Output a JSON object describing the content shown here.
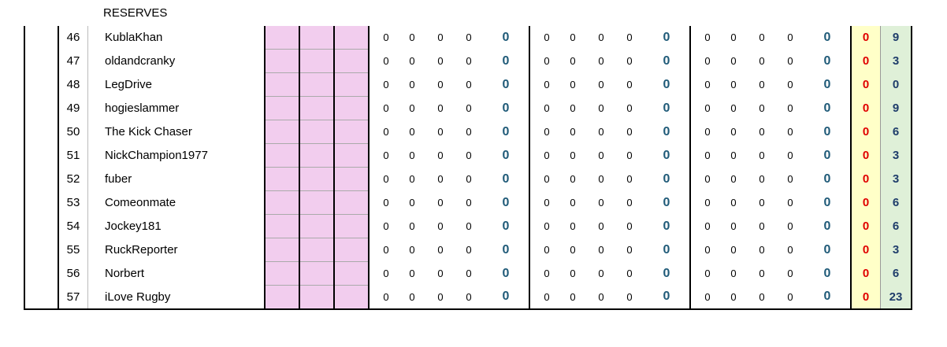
{
  "header": {
    "title": "RESERVES"
  },
  "table": {
    "rows": [
      {
        "rank": 46,
        "name": "KublaKhan",
        "groups": [
          [
            0,
            0,
            0,
            0,
            0
          ],
          [
            0,
            0,
            0,
            0,
            0
          ],
          [
            0,
            0,
            0,
            0,
            0
          ]
        ],
        "round": 0,
        "total": 9
      },
      {
        "rank": 47,
        "name": "oldandcranky",
        "groups": [
          [
            0,
            0,
            0,
            0,
            0
          ],
          [
            0,
            0,
            0,
            0,
            0
          ],
          [
            0,
            0,
            0,
            0,
            0
          ]
        ],
        "round": 0,
        "total": 3
      },
      {
        "rank": 48,
        "name": "LegDrive",
        "groups": [
          [
            0,
            0,
            0,
            0,
            0
          ],
          [
            0,
            0,
            0,
            0,
            0
          ],
          [
            0,
            0,
            0,
            0,
            0
          ]
        ],
        "round": 0,
        "total": 0
      },
      {
        "rank": 49,
        "name": "hogieslammer",
        "groups": [
          [
            0,
            0,
            0,
            0,
            0
          ],
          [
            0,
            0,
            0,
            0,
            0
          ],
          [
            0,
            0,
            0,
            0,
            0
          ]
        ],
        "round": 0,
        "total": 9
      },
      {
        "rank": 50,
        "name": "The Kick Chaser",
        "groups": [
          [
            0,
            0,
            0,
            0,
            0
          ],
          [
            0,
            0,
            0,
            0,
            0
          ],
          [
            0,
            0,
            0,
            0,
            0
          ]
        ],
        "round": 0,
        "total": 6
      },
      {
        "rank": 51,
        "name": "NickChampion1977",
        "groups": [
          [
            0,
            0,
            0,
            0,
            0
          ],
          [
            0,
            0,
            0,
            0,
            0
          ],
          [
            0,
            0,
            0,
            0,
            0
          ]
        ],
        "round": 0,
        "total": 3
      },
      {
        "rank": 52,
        "name": "fuber",
        "groups": [
          [
            0,
            0,
            0,
            0,
            0
          ],
          [
            0,
            0,
            0,
            0,
            0
          ],
          [
            0,
            0,
            0,
            0,
            0
          ]
        ],
        "round": 0,
        "total": 3
      },
      {
        "rank": 53,
        "name": "Comeonmate",
        "groups": [
          [
            0,
            0,
            0,
            0,
            0
          ],
          [
            0,
            0,
            0,
            0,
            0
          ],
          [
            0,
            0,
            0,
            0,
            0
          ]
        ],
        "round": 0,
        "total": 6
      },
      {
        "rank": 54,
        "name": "Jockey181",
        "groups": [
          [
            0,
            0,
            0,
            0,
            0
          ],
          [
            0,
            0,
            0,
            0,
            0
          ],
          [
            0,
            0,
            0,
            0,
            0
          ]
        ],
        "round": 0,
        "total": 6
      },
      {
        "rank": 55,
        "name": "RuckReporter",
        "groups": [
          [
            0,
            0,
            0,
            0,
            0
          ],
          [
            0,
            0,
            0,
            0,
            0
          ],
          [
            0,
            0,
            0,
            0,
            0
          ]
        ],
        "round": 0,
        "total": 3
      },
      {
        "rank": 56,
        "name": "Norbert",
        "groups": [
          [
            0,
            0,
            0,
            0,
            0
          ],
          [
            0,
            0,
            0,
            0,
            0
          ],
          [
            0,
            0,
            0,
            0,
            0
          ]
        ],
        "round": 0,
        "total": 6
      },
      {
        "rank": 57,
        "name": "iLove Rugby",
        "groups": [
          [
            0,
            0,
            0,
            0,
            0
          ],
          [
            0,
            0,
            0,
            0,
            0
          ],
          [
            0,
            0,
            0,
            0,
            0
          ]
        ],
        "round": 0,
        "total": 23
      }
    ]
  }
}
